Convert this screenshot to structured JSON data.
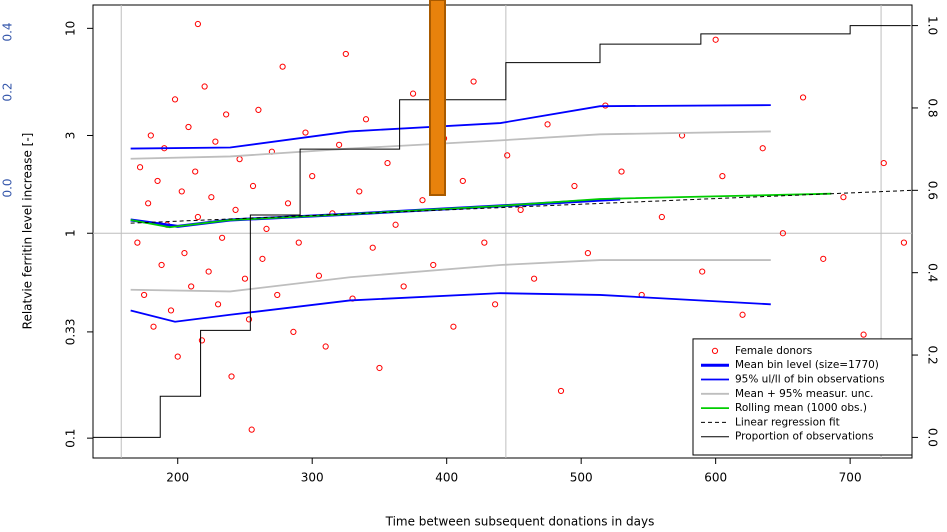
{
  "chart_data": {
    "type": "scatter",
    "xlabel": "Time between subsequent donations in days",
    "ylabel": "Relatvie ferritin level increase [-]",
    "edge_labels": [
      "0.4",
      "0.2",
      "0.0"
    ],
    "xlim": [
      137,
      746
    ],
    "xticks": [
      200,
      300,
      400,
      500,
      600,
      700
    ],
    "ylim": [
      0.08,
      13
    ],
    "yscale": "log",
    "yticks": [
      0.1,
      0.33,
      1,
      3,
      10
    ],
    "y2lim": [
      -0.05,
      1.05
    ],
    "y2ticks": [
      {
        "value": 0,
        "label": "0.0"
      },
      {
        "value": 0.2,
        "label": "0.2"
      },
      {
        "value": 0.4,
        "label": "0.4"
      },
      {
        "value": 0.6,
        "label": "0.6"
      },
      {
        "value": 0.8,
        "label": "0.8"
      },
      {
        "value": 1,
        "label": "1.0"
      }
    ],
    "vlines": [
      158,
      444,
      723
    ],
    "hlines": [
      1
    ],
    "legend": "bottom-right",
    "series": [
      {
        "name": "Female donors",
        "mark": "points",
        "color": "#ff0000",
        "x": [
          170,
          172,
          175,
          178,
          180,
          182,
          185,
          188,
          190,
          192,
          195,
          198,
          200,
          203,
          205,
          208,
          210,
          213,
          215,
          218,
          220,
          223,
          225,
          228,
          230,
          233,
          236,
          240,
          243,
          246,
          250,
          253,
          256,
          260,
          263,
          266,
          270,
          274,
          278,
          282,
          286,
          290,
          295,
          300,
          305,
          310,
          315,
          320,
          325,
          330,
          335,
          340,
          345,
          350,
          356,
          362,
          368,
          375,
          382,
          390,
          398,
          405,
          412,
          420,
          428,
          436,
          445,
          455,
          465,
          475,
          485,
          495,
          505,
          518,
          530,
          545,
          560,
          575,
          590,
          605,
          620,
          635,
          650,
          665,
          680,
          695,
          710,
          725,
          740,
          215,
          255,
          600
        ],
        "values": [
          0.9,
          2.1,
          0.5,
          1.4,
          3.0,
          0.35,
          1.8,
          0.7,
          2.6,
          1.1,
          0.42,
          4.5,
          0.25,
          1.6,
          0.8,
          3.3,
          0.55,
          2.0,
          1.2,
          0.3,
          5.2,
          0.65,
          1.5,
          2.8,
          0.45,
          0.95,
          3.8,
          0.2,
          1.3,
          2.3,
          0.6,
          0.38,
          1.7,
          4.0,
          0.75,
          1.05,
          2.5,
          0.5,
          6.5,
          1.4,
          0.33,
          0.9,
          3.1,
          1.9,
          0.62,
          0.28,
          1.25,
          2.7,
          7.5,
          0.48,
          1.6,
          3.6,
          0.85,
          0.22,
          2.2,
          1.1,
          0.55,
          4.8,
          1.45,
          0.7,
          2.9,
          0.35,
          1.8,
          5.5,
          0.9,
          0.45,
          2.4,
          1.3,
          0.6,
          3.4,
          0.17,
          1.7,
          0.8,
          4.2,
          2.0,
          0.5,
          1.2,
          3.0,
          0.65,
          1.9,
          0.4,
          2.6,
          1.0,
          4.6,
          0.75,
          1.5,
          0.32,
          2.2,
          0.9,
          10.5,
          0.11,
          8.8
        ]
      },
      {
        "name": "Mean bin level (size=1770)",
        "mark": "thick",
        "color": "#0000ff",
        "x": [
          165,
          200,
          239,
          328,
          440,
          514,
          529
        ],
        "values": [
          1.16,
          1.08,
          1.16,
          1.24,
          1.36,
          1.45,
          1.47
        ]
      },
      {
        "name": "95% ul/ll of bin observations",
        "mark": "line",
        "color": "#0000ff",
        "x": [
          165,
          239,
          328,
          440,
          514,
          641
        ],
        "values": [
          2.59,
          2.62,
          3.14,
          3.45,
          4.17,
          4.22
        ]
      },
      {
        "mark": "line",
        "color": "#0000ff",
        "x": [
          165,
          198,
          239,
          328,
          440,
          514,
          641
        ],
        "values": [
          0.42,
          0.37,
          0.4,
          0.47,
          0.51,
          0.5,
          0.45
        ]
      },
      {
        "name": "Mean + 95% measur. unc.",
        "mark": "line",
        "color": "#bebebe",
        "x": [
          165,
          239,
          328,
          440,
          514,
          641
        ],
        "values": [
          2.31,
          2.37,
          2.59,
          2.84,
          3.04,
          3.14
        ]
      },
      {
        "mark": "line",
        "color": "#bebebe",
        "x": [
          165,
          239,
          328,
          440,
          514,
          641
        ],
        "values": [
          0.53,
          0.52,
          0.61,
          0.7,
          0.74,
          0.74
        ]
      },
      {
        "name": "Rolling mean (1000 obs.)",
        "mark": "line",
        "color": "#00cd00",
        "x": [
          165,
          194,
          239,
          328,
          440,
          514,
          686
        ],
        "values": [
          1.16,
          1.07,
          1.16,
          1.24,
          1.36,
          1.47,
          1.56
        ]
      },
      {
        "name": "Linear regression fit",
        "mark": "dashed",
        "color": "#000000",
        "x": [
          165,
          746
        ],
        "values": [
          1.12,
          1.62
        ]
      },
      {
        "name": "Proportion of observations",
        "mark": "step",
        "color": "#000000",
        "axis": "y2",
        "x": [
          137,
          165,
          187,
          217,
          254,
          291,
          365,
          444,
          514,
          589,
          700,
          745
        ],
        "values": [
          0,
          0,
          0.1,
          0.26,
          0.54,
          0.7,
          0.82,
          0.91,
          0.955,
          0.98,
          1,
          1
        ]
      }
    ]
  }
}
